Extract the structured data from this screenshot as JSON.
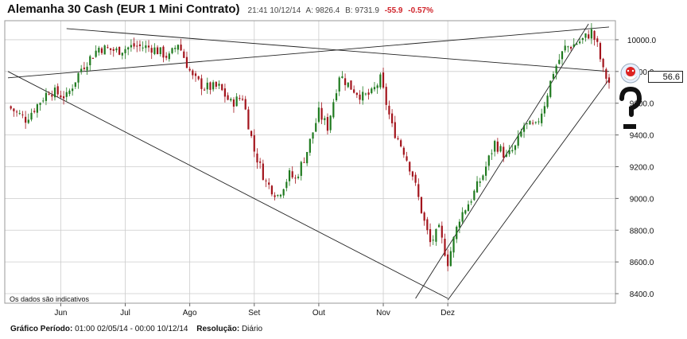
{
  "header": {
    "title": "Alemanha 30 Cash (EUR 1 Mini Contrato)",
    "time": "21:41 10/12/14",
    "ask": "A: 9826.4",
    "bid": "B: 9731.9",
    "change": "-55.9",
    "change_pct": "-0.57%"
  },
  "footer": {
    "period_label": "Gráfico Período:",
    "period_value": "01:00 02/05/14 - 00:00 10/12/14",
    "resolution_label": "Resolução:",
    "resolution_value": "Diário"
  },
  "price_tag": "56.6",
  "colors": {
    "up": "#1f7a1f",
    "down": "#a3141c",
    "grid": "#cccccc",
    "line": "#222222",
    "negative": "#d0232a"
  },
  "chart_data": {
    "type": "candlestick",
    "title": "Alemanha 30 Cash (EUR 1 Mini Contrato)",
    "note": "Os dados são indicativos",
    "x_labels": [
      "Jun",
      "Jul",
      "Ago",
      "Set",
      "Out",
      "Nov",
      "Dez"
    ],
    "y_ticks": [
      8400.0,
      8600.0,
      8800.0,
      9000.0,
      9200.0,
      9400.0,
      9600.0,
      9800.0,
      10000.0
    ],
    "y_tick_labels": [
      "8400.0",
      "8600.0",
      "8800.0",
      "9000.0",
      "9200.0",
      "9400.0",
      "9600.0",
      "9800.0",
      "10000.0"
    ],
    "ylim": [
      8340,
      10120
    ],
    "grid": true,
    "close_path": [
      [
        0,
        9580
      ],
      [
        6,
        9500
      ],
      [
        14,
        9680
      ],
      [
        20,
        9640
      ],
      [
        25,
        9820
      ],
      [
        31,
        9950
      ],
      [
        37,
        9930
      ],
      [
        43,
        9960
      ],
      [
        49,
        9950
      ],
      [
        55,
        9890
      ],
      [
        58,
        9980
      ],
      [
        63,
        9760
      ],
      [
        67,
        9700
      ],
      [
        72,
        9700
      ],
      [
        76,
        9600
      ],
      [
        80,
        9640
      ],
      [
        84,
        9300
      ],
      [
        88,
        9100
      ],
      [
        92,
        9020
      ],
      [
        96,
        9150
      ],
      [
        98,
        9120
      ],
      [
        102,
        9300
      ],
      [
        106,
        9540
      ],
      [
        109,
        9450
      ],
      [
        113,
        9780
      ],
      [
        117,
        9700
      ],
      [
        121,
        9640
      ],
      [
        124,
        9660
      ],
      [
        127,
        9750
      ],
      [
        131,
        9450
      ],
      [
        135,
        9300
      ],
      [
        138,
        9150
      ],
      [
        142,
        8850
      ],
      [
        144,
        8720
      ],
      [
        147,
        8800
      ],
      [
        150,
        8600
      ],
      [
        154,
        8880
      ],
      [
        158,
        9000
      ],
      [
        162,
        9150
      ],
      [
        166,
        9350
      ],
      [
        170,
        9260
      ],
      [
        173,
        9320
      ],
      [
        176,
        9460
      ],
      [
        180,
        9450
      ],
      [
        183,
        9600
      ],
      [
        186,
        9800
      ],
      [
        190,
        9950
      ],
      [
        193,
        9970
      ],
      [
        196,
        10000
      ],
      [
        199,
        10050
      ],
      [
        201,
        9960
      ],
      [
        203,
        9800
      ],
      [
        205,
        9730
      ]
    ],
    "trendlines": [
      {
        "name": "top",
        "from": [
          0,
          9760
        ],
        "to": [
          205,
          10080
        ]
      },
      {
        "name": "upper-down",
        "from": [
          20,
          10070
        ],
        "to": [
          205,
          9800
        ]
      },
      {
        "name": "lower-down",
        "from": [
          0,
          9800
        ],
        "to": [
          150,
          8370
        ]
      },
      {
        "name": "channel-upper",
        "from": [
          139,
          8370
        ],
        "to": [
          198,
          10100
        ]
      },
      {
        "name": "channel-lower",
        "from": [
          150,
          8360
        ],
        "to": [
          205,
          9750
        ]
      }
    ]
  }
}
